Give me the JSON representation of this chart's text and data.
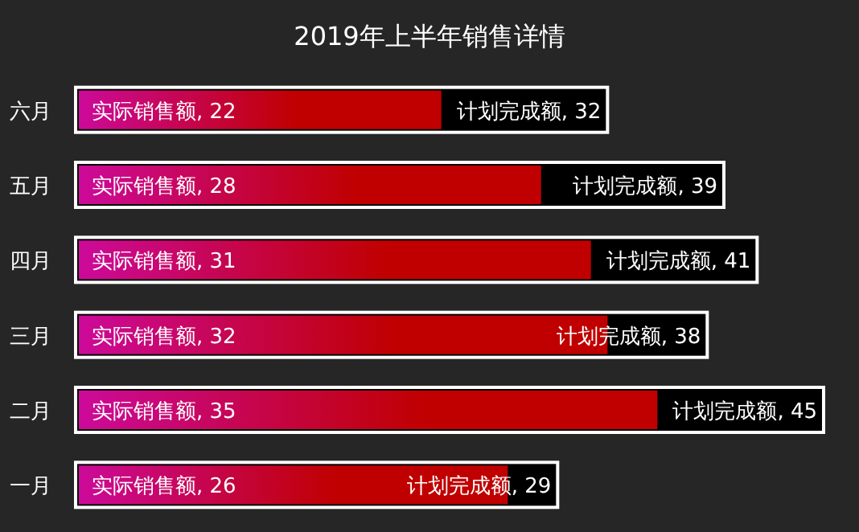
{
  "chart_data": {
    "type": "bar",
    "orientation": "horizontal",
    "title": "2019年上半年销售详情",
    "categories": [
      "六月",
      "五月",
      "四月",
      "三月",
      "二月",
      "一月"
    ],
    "series": [
      {
        "name": "计划完成额",
        "color": "#000000",
        "values": [
          32,
          39,
          41,
          38,
          45,
          29
        ],
        "value_labels": [
          ", 32",
          ", 39",
          ", 41",
          ", 38",
          ", 45",
          ", 29"
        ]
      },
      {
        "name": "实际销售额",
        "color": "#c00000",
        "values": [
          22,
          28,
          31,
          32,
          35,
          26
        ],
        "value_labels": [
          ", 22",
          ", 28",
          ", 31",
          ", 32",
          ", 35",
          ", 26"
        ]
      }
    ]
  }
}
